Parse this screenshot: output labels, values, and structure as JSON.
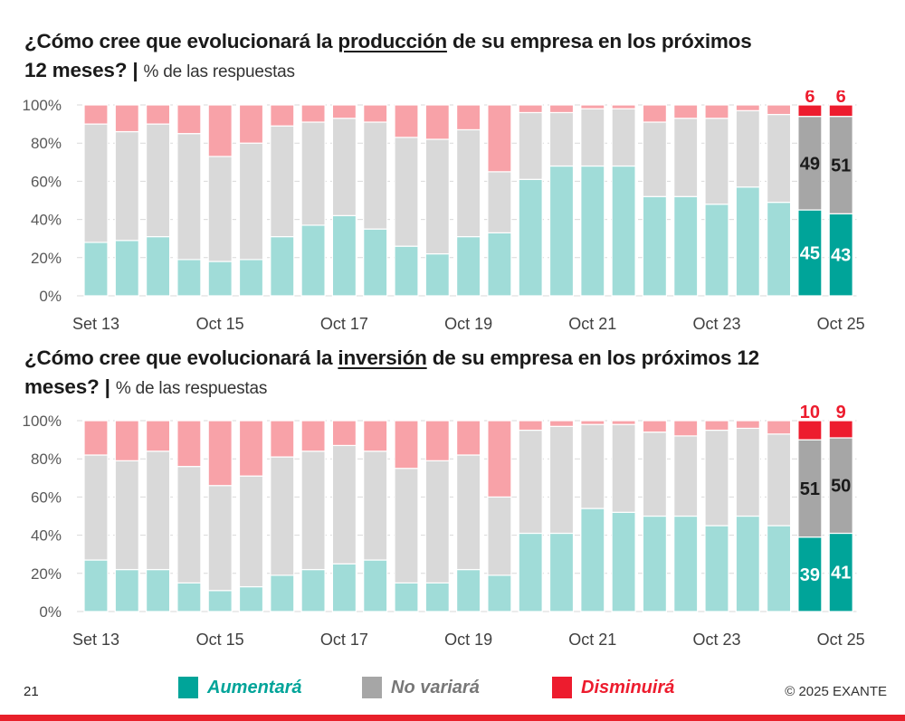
{
  "slide": {
    "page_number": "21",
    "copyright": "© 2025 EXANTE",
    "accent_color": "#e8202a"
  },
  "legend": [
    {
      "label": "Aumentará",
      "color": "#00a499"
    },
    {
      "label": "No variará",
      "color": "#a6a6a6"
    },
    {
      "label": "Disminuirá",
      "color": "#ed1c2e"
    }
  ],
  "colors": {
    "aumentara_light": "#a0dcd8",
    "novariara_light": "#d9d9d9",
    "disminuira_light": "#f8a2a8",
    "aumentara_dark": "#00a499",
    "novariara_dark": "#a6a6a6",
    "disminuira_dark": "#ed1c2e"
  },
  "chart1_title": {
    "pre": "¿Cómo cree que evolucionará la ",
    "keyword": "producción",
    "post": " de su empresa en los próximos",
    "line2": "12 meses?",
    "sep": "|",
    "sub": "% de las respuestas"
  },
  "chart2_title": {
    "pre": "¿Cómo cree que evolucionará la ",
    "keyword": "inversión",
    "post": " de su empresa en los próximos 12",
    "line2": "meses?",
    "sep": "|",
    "sub": "% de las respuestas"
  },
  "chart_data": [
    {
      "type": "bar",
      "stacked": true,
      "title": "¿Cómo cree que evolucionará la producción de su empresa en los próximos 12 meses? | % de las respuestas",
      "xlabel": "",
      "ylabel": "",
      "ylim": [
        0,
        100
      ],
      "yticks": [
        "0%",
        "20%",
        "40%",
        "60%",
        "80%",
        "100%"
      ],
      "xtick_labels": [
        {
          "index": 0,
          "label": "Set 13"
        },
        {
          "index": 4,
          "label": "Oct 15"
        },
        {
          "index": 8,
          "label": "Oct 17"
        },
        {
          "index": 12,
          "label": "Oct 19"
        },
        {
          "index": 16,
          "label": "Oct 21"
        },
        {
          "index": 20,
          "label": "Oct 23"
        },
        {
          "index": 24,
          "label": "Oct 25"
        }
      ],
      "highlight_last": 2,
      "series": [
        {
          "name": "Aumentará",
          "values": [
            28,
            29,
            31,
            19,
            18,
            19,
            31,
            37,
            42,
            35,
            26,
            22,
            31,
            33,
            61,
            68,
            68,
            68,
            52,
            52,
            48,
            57,
            49,
            45,
            43
          ]
        },
        {
          "name": "No variará",
          "values": [
            62,
            57,
            59,
            66,
            55,
            61,
            58,
            54,
            51,
            56,
            57,
            60,
            56,
            32,
            35,
            28,
            30,
            30,
            39,
            41,
            45,
            40,
            46,
            49,
            51
          ]
        },
        {
          "name": "Disminuirá",
          "values": [
            10,
            14,
            10,
            15,
            27,
            20,
            11,
            9,
            7,
            9,
            17,
            18,
            13,
            35,
            4,
            4,
            2,
            2,
            9,
            7,
            7,
            3,
            5,
            6,
            6
          ]
        }
      ],
      "data_labels": [
        {
          "index": 23,
          "aumentara": "45",
          "novariara": "49",
          "disminuira": "6"
        },
        {
          "index": 24,
          "aumentara": "43",
          "novariara": "51",
          "disminuira": "6"
        }
      ],
      "grid": true
    },
    {
      "type": "bar",
      "stacked": true,
      "title": "¿Cómo cree que evolucionará la inversión de su empresa en los próximos 12 meses? | % de las respuestas",
      "xlabel": "",
      "ylabel": "",
      "ylim": [
        0,
        100
      ],
      "yticks": [
        "0%",
        "20%",
        "40%",
        "60%",
        "80%",
        "100%"
      ],
      "xtick_labels": [
        {
          "index": 0,
          "label": "Set 13"
        },
        {
          "index": 4,
          "label": "Oct 15"
        },
        {
          "index": 8,
          "label": "Oct 17"
        },
        {
          "index": 12,
          "label": "Oct 19"
        },
        {
          "index": 16,
          "label": "Oct 21"
        },
        {
          "index": 20,
          "label": "Oct 23"
        },
        {
          "index": 24,
          "label": "Oct 25"
        }
      ],
      "highlight_last": 2,
      "series": [
        {
          "name": "Aumentará",
          "values": [
            27,
            22,
            22,
            15,
            11,
            13,
            19,
            22,
            25,
            27,
            15,
            15,
            22,
            19,
            41,
            41,
            54,
            52,
            50,
            50,
            45,
            50,
            45,
            39,
            41
          ]
        },
        {
          "name": "No variará",
          "values": [
            55,
            57,
            62,
            61,
            55,
            58,
            62,
            62,
            62,
            57,
            60,
            64,
            60,
            41,
            54,
            56,
            44,
            46,
            44,
            42,
            50,
            46,
            48,
            51,
            50
          ]
        },
        {
          "name": "Disminuirá",
          "values": [
            18,
            21,
            16,
            24,
            34,
            29,
            19,
            16,
            13,
            16,
            25,
            21,
            18,
            40,
            5,
            3,
            2,
            2,
            6,
            8,
            5,
            4,
            7,
            10,
            9
          ]
        }
      ],
      "data_labels": [
        {
          "index": 23,
          "aumentara": "39",
          "novariara": "51",
          "disminuira": "10"
        },
        {
          "index": 24,
          "aumentara": "41",
          "novariara": "50",
          "disminuira": "9"
        }
      ],
      "grid": true
    }
  ]
}
